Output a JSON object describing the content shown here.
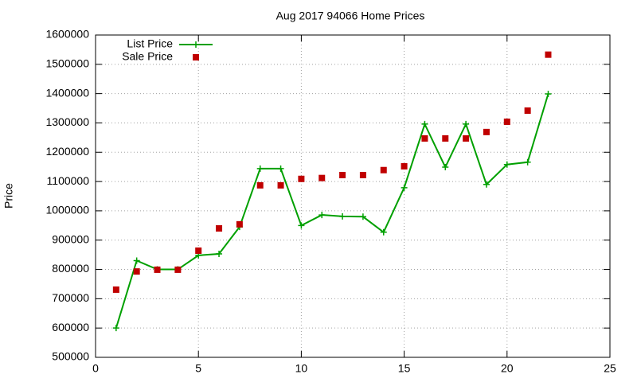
{
  "chart_data": {
    "type": "line",
    "title": "Aug 2017 94066 Home Prices",
    "y_label": "Price",
    "x": [
      1,
      2,
      3,
      4,
      5,
      6,
      7,
      8,
      9,
      10,
      11,
      12,
      13,
      14,
      15,
      16,
      17,
      18,
      19,
      20,
      21,
      22
    ],
    "series": [
      {
        "name": "List Price",
        "color": "#00a000",
        "line": true,
        "marker": "plus",
        "values": [
          600000,
          830000,
          800000,
          800000,
          848000,
          853000,
          945000,
          1144000,
          1144000,
          950000,
          986000,
          981000,
          980000,
          927000,
          1079000,
          1296000,
          1149000,
          1296000,
          1090000,
          1158000,
          1166000,
          1399000
        ]
      },
      {
        "name": "Sale Price",
        "color": "#c00000",
        "line": false,
        "marker": "square",
        "values": [
          731000,
          793000,
          799000,
          799000,
          864000,
          940000,
          954000,
          1087000,
          1087000,
          1109000,
          1112000,
          1122000,
          1122000,
          1139000,
          1152000,
          1247000,
          1247000,
          1247000,
          1269000,
          1304000,
          1342000,
          1533000
        ]
      }
    ],
    "xlim": [
      0,
      25
    ],
    "xticks": [
      0,
      5,
      10,
      15,
      20,
      25
    ],
    "ylim": [
      500000,
      1600000
    ],
    "yticks": [
      500000,
      600000,
      700000,
      800000,
      900000,
      1000000,
      1100000,
      1200000,
      1300000,
      1400000,
      1500000,
      1600000
    ],
    "grid": true,
    "legend": "top-left"
  }
}
